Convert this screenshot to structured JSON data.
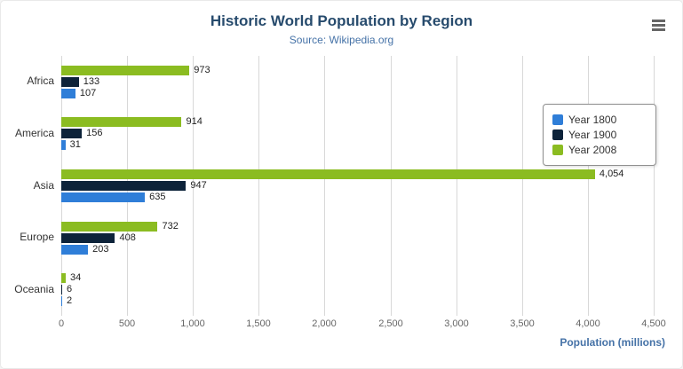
{
  "chart_data": {
    "type": "bar",
    "orientation": "horizontal",
    "title": "Historic World Population by Region",
    "subtitle": "Source: Wikipedia.org",
    "categories": [
      "Africa",
      "America",
      "Asia",
      "Europe",
      "Oceania"
    ],
    "series": [
      {
        "name": "Year 1800",
        "color": "#2f7ed8",
        "values": [
          107,
          31,
          635,
          203,
          2
        ]
      },
      {
        "name": "Year 1900",
        "color": "#0d233a",
        "values": [
          133,
          156,
          947,
          408,
          6
        ]
      },
      {
        "name": "Year 2008",
        "color": "#8bbc21",
        "values": [
          973,
          914,
          4054,
          732,
          34
        ]
      }
    ],
    "visual_series_order_top_to_bottom": [
      "Year 2008",
      "Year 1900",
      "Year 1800"
    ],
    "xlabel": "Population (millions)",
    "xlim": [
      0,
      4500
    ],
    "xticks": [
      0,
      500,
      1000,
      1500,
      2000,
      2500,
      3000,
      3500,
      4000,
      4500
    ],
    "grid": true,
    "legend_position": "right"
  },
  "menu": {
    "icon": "hamburger-icon"
  }
}
